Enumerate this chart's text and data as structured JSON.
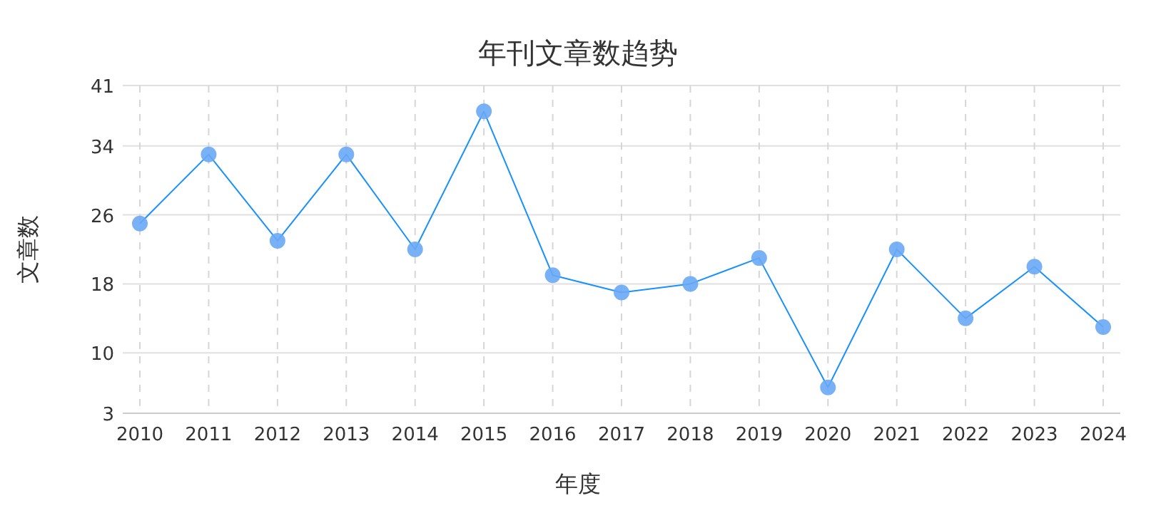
{
  "chart_data": {
    "type": "line",
    "title": "年刊文章数趋势",
    "xlabel": "年度",
    "ylabel": "文章数",
    "categories": [
      "2010",
      "2011",
      "2012",
      "2013",
      "2014",
      "2015",
      "2016",
      "2017",
      "2018",
      "2019",
      "2020",
      "2021",
      "2022",
      "2023",
      "2024"
    ],
    "series": [
      {
        "color": "#1890ff",
        "values": [
          25,
          33,
          23,
          33,
          22,
          38,
          19,
          17,
          18,
          21,
          6,
          22,
          14,
          20,
          13
        ]
      }
    ],
    "ylim": [
      3,
      41
    ],
    "yticks": [
      3,
      10,
      18,
      26,
      34,
      41
    ],
    "grid": true,
    "marker": "circle",
    "line_style": "solid"
  }
}
